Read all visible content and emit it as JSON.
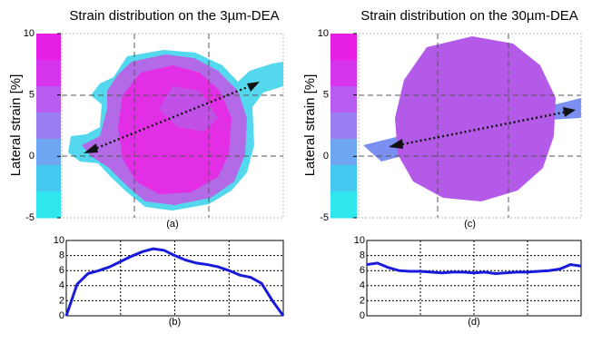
{
  "chart_data": [
    {
      "type": "image",
      "title": "Strain distribution on the 3µm-DEA",
      "ylabel": "Lateral strain [%]",
      "caption": "(a)",
      "ylim": [
        -5,
        10
      ],
      "yticks": [
        -5,
        0,
        5,
        10
      ]
    },
    {
      "type": "line",
      "caption": "(b)",
      "color": "#1a1adb",
      "grid": true,
      "x": [
        0,
        0.05,
        0.1,
        0.15,
        0.2,
        0.25,
        0.3,
        0.35,
        0.4,
        0.45,
        0.5,
        0.55,
        0.6,
        0.65,
        0.7,
        0.75,
        0.8,
        0.85,
        0.9,
        0.95,
        1
      ],
      "values": [
        0,
        4.2,
        5.6,
        6.0,
        6.5,
        7.2,
        7.9,
        8.5,
        8.9,
        8.7,
        8.0,
        7.4,
        7.0,
        6.8,
        6.5,
        6.0,
        5.4,
        5.1,
        4.3,
        2.0,
        0
      ],
      "xlim": [
        0,
        1
      ],
      "ylim": [
        0,
        10
      ],
      "yticks": [
        0,
        2,
        4,
        6,
        8,
        10
      ]
    },
    {
      "type": "image",
      "title": "Strain distribution on the 30µm-DEA",
      "ylabel": "Lateral strain [%]",
      "caption": "(c)",
      "ylim": [
        -5,
        10
      ],
      "yticks": [
        -5,
        0,
        5,
        10
      ]
    },
    {
      "type": "line",
      "caption": "(d)",
      "color": "#1a1adb",
      "grid": true,
      "x": [
        0,
        0.05,
        0.1,
        0.15,
        0.2,
        0.25,
        0.3,
        0.35,
        0.4,
        0.45,
        0.5,
        0.55,
        0.6,
        0.65,
        0.7,
        0.75,
        0.8,
        0.85,
        0.9,
        0.95,
        1
      ],
      "values": [
        6.8,
        7.0,
        6.4,
        6.0,
        5.9,
        5.9,
        5.8,
        5.7,
        5.8,
        5.8,
        5.7,
        5.8,
        5.6,
        5.7,
        5.8,
        5.8,
        5.9,
        6.0,
        6.2,
        6.8,
        6.6
      ],
      "xlim": [
        0,
        1
      ],
      "ylim": [
        0,
        10
      ],
      "yticks": [
        0,
        2,
        4,
        6,
        8,
        10
      ]
    }
  ]
}
